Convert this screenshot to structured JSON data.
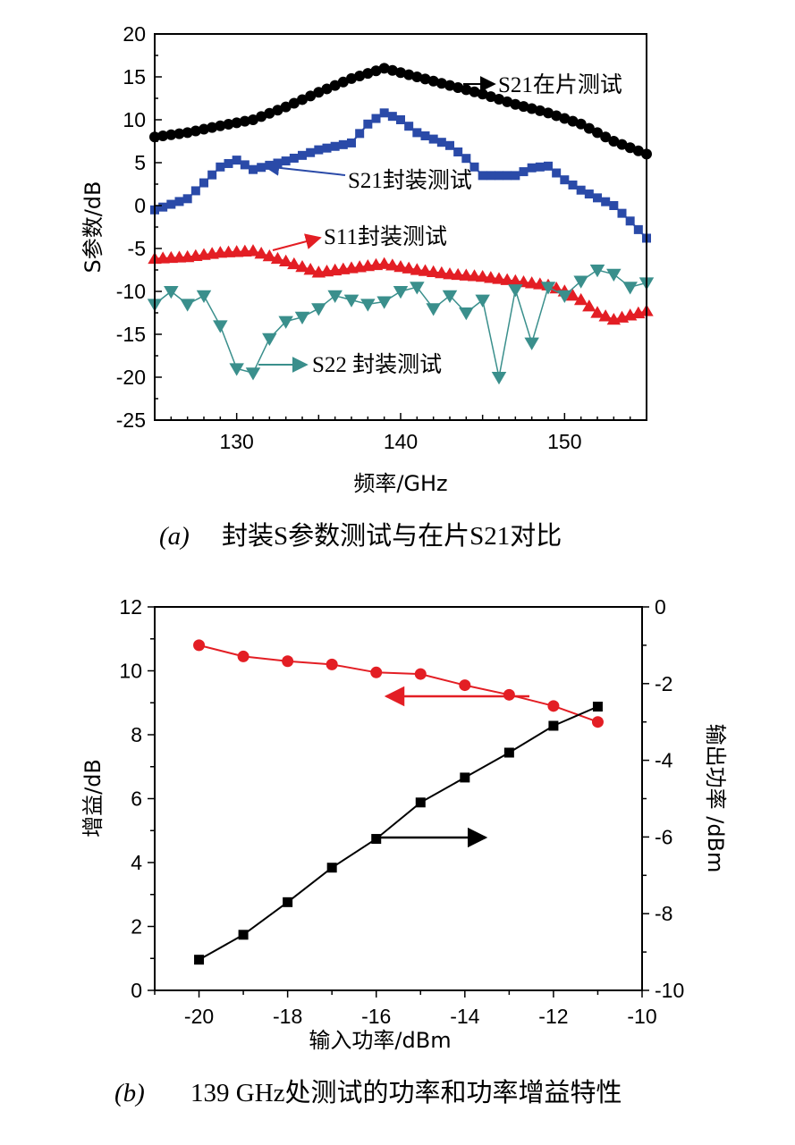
{
  "chart_data": [
    {
      "type": "line",
      "caption_label": "(a)",
      "caption_text": "封装S参数测试与在片S21对比",
      "xlabel": "频率/GHz",
      "ylabel": "S参数/dB",
      "xlim": [
        125,
        155
      ],
      "ylim": [
        -25,
        20
      ],
      "xticks": [
        130,
        140,
        150
      ],
      "yticks": [
        20,
        15,
        10,
        5,
        0,
        -5,
        -10,
        -15,
        -20,
        -25
      ],
      "grid": false,
      "series": [
        {
          "name": "S21在片测试",
          "color": "#000000",
          "marker": "circle",
          "x": [
            125,
            127,
            129,
            131,
            133,
            135,
            137,
            139,
            141,
            143,
            145,
            147,
            149,
            151,
            153,
            155
          ],
          "values": [
            8,
            8.5,
            9.3,
            10,
            11.5,
            13.2,
            14.8,
            16,
            15,
            14,
            13,
            11.8,
            10.8,
            9.5,
            7.5,
            6
          ]
        },
        {
          "name": "S21封装测试",
          "color": "#2a4aa8",
          "marker": "square",
          "x": [
            125,
            127,
            129,
            130,
            131,
            133,
            135,
            137,
            138,
            139,
            140,
            141,
            143,
            144,
            145,
            147,
            148,
            149,
            150,
            151,
            153,
            154,
            155
          ],
          "values": [
            -0.5,
            0.8,
            4.5,
            5.3,
            4.2,
            5.2,
            6.5,
            7.3,
            9.5,
            10.8,
            10,
            8.5,
            7,
            5.5,
            3.5,
            3.5,
            4.4,
            4.6,
            3,
            1.8,
            0,
            -1.8,
            -3.8
          ]
        },
        {
          "name": "S11封装测试",
          "color": "#e31e24",
          "marker": "triangle-up",
          "x": [
            125,
            127,
            129,
            131,
            133,
            135,
            137,
            139,
            141,
            143,
            145,
            147,
            149,
            150,
            151,
            152,
            153,
            155
          ],
          "values": [
            -6.2,
            -6,
            -5.5,
            -5.3,
            -6.5,
            -7.8,
            -7.3,
            -6.8,
            -7.5,
            -8,
            -8.3,
            -8.8,
            -9.3,
            -10,
            -11,
            -12.5,
            -13.3,
            -12.3
          ]
        },
        {
          "name": "S22封装测试",
          "color": "#3a8f8c",
          "marker": "triangle-down",
          "x": [
            125,
            126,
            127,
            128,
            129,
            130,
            131,
            132,
            133,
            134,
            135,
            136,
            137,
            138,
            139,
            140,
            141,
            142,
            143,
            144,
            145,
            146,
            147,
            148,
            149,
            150,
            151,
            152,
            153,
            154,
            155
          ],
          "values": [
            -11.5,
            -10,
            -11.5,
            -10.5,
            -14,
            -19,
            -19.5,
            -15.5,
            -13.5,
            -13,
            -12,
            -10.5,
            -11,
            -11.5,
            -11.2,
            -10,
            -9.5,
            -12,
            -10.5,
            -12.5,
            -11,
            -20,
            -9.8,
            -16,
            -9.5,
            -10.5,
            -8.8,
            -7.5,
            -8,
            -9.5,
            -9
          ]
        }
      ],
      "annotations": [
        {
          "text": "S21在片测试",
          "series": "S21在片测试"
        },
        {
          "text": "S21封装测试",
          "series": "S21封装测试"
        },
        {
          "text": "S11封装测试",
          "series": "S11封装测试"
        },
        {
          "text": "S22 封装测试",
          "series": "S22封装测试"
        }
      ]
    },
    {
      "type": "line",
      "caption_label": "(b)",
      "caption_text": "139 GHz处测试的功率和功率增益特性",
      "xlabel": "输入功率/dBm",
      "ylabel": "增益/dB",
      "y2label": "输出功率 /dBm",
      "xlim": [
        -21,
        -10
      ],
      "ylim": [
        0,
        12
      ],
      "y2lim": [
        -10,
        0
      ],
      "xticks": [
        -20,
        -18,
        -16,
        -14,
        -12,
        -10
      ],
      "yticks": [
        0,
        2,
        4,
        6,
        8,
        10,
        12
      ],
      "y2ticks": [
        0,
        -2,
        -4,
        -6,
        -8,
        -10
      ],
      "grid": false,
      "series": [
        {
          "name": "增益",
          "axis": "left",
          "color": "#e31e24",
          "marker": "circle",
          "x": [
            -20,
            -19,
            -18,
            -17,
            -16,
            -15,
            -14,
            -13,
            -12,
            -11
          ],
          "values": [
            10.8,
            10.45,
            10.3,
            10.2,
            9.95,
            9.9,
            9.55,
            9.25,
            8.9,
            8.4
          ]
        },
        {
          "name": "输出功率",
          "axis": "right",
          "color": "#000000",
          "marker": "square",
          "x": [
            -20,
            -19,
            -18,
            -17,
            -16,
            -15,
            -14,
            -13,
            -12,
            -11
          ],
          "values": [
            -9.2,
            -8.55,
            -7.7,
            -6.8,
            -6.05,
            -5.1,
            -4.45,
            -3.8,
            -3.1,
            -2.6
          ]
        }
      ]
    }
  ]
}
